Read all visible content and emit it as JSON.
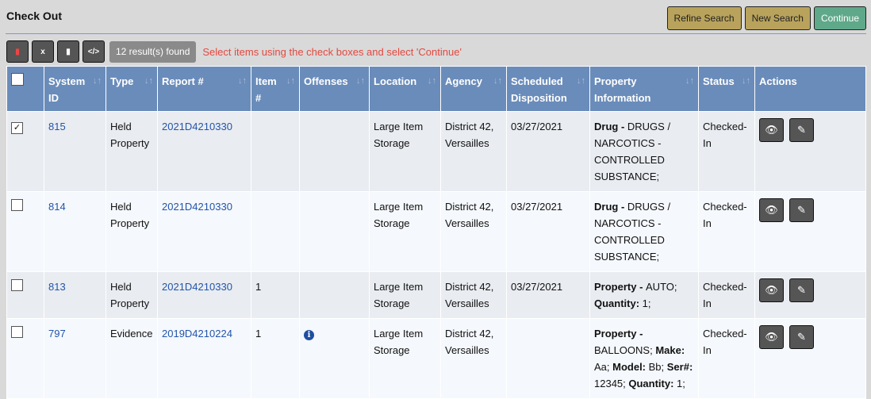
{
  "page": {
    "title": "Check Out"
  },
  "buttons": {
    "refine": "Refine Search",
    "new": "New Search",
    "continue": "Continue"
  },
  "toolbar": {
    "icons": [
      "pdf-icon",
      "excel-icon",
      "file-icon",
      "code-icon"
    ],
    "count": "12 result(s) found",
    "message": "Select items using the check boxes and select 'Continue'"
  },
  "colors": {
    "header": "#6a8cba",
    "refine": "#b9a35c",
    "continue": "#5fa98a",
    "message": "#e5483f"
  },
  "columns": [
    "System ID",
    "Type",
    "Report #",
    "Item #",
    "Offenses",
    "Location",
    "Agency",
    "Scheduled Disposition",
    "Property Information",
    "Status",
    "Actions"
  ],
  "rows": [
    {
      "checked": true,
      "id": "815",
      "type": "Held Property",
      "report": "2021D4210330",
      "item": "",
      "offense_icon": false,
      "location": "Large Item Storage",
      "agency": "District 42, Versailles",
      "disposition": "03/27/2021",
      "property": [
        [
          "Drug - ",
          "DRUGS / NARCOTICS - CONTROLLED SUBSTANCE;"
        ]
      ],
      "status": "Checked-In"
    },
    {
      "checked": false,
      "id": "814",
      "type": "Held Property",
      "report": "2021D4210330",
      "item": "",
      "offense_icon": false,
      "location": "Large Item Storage",
      "agency": "District 42, Versailles",
      "disposition": "03/27/2021",
      "property": [
        [
          "Drug - ",
          "DRUGS / NARCOTICS - CONTROLLED SUBSTANCE;"
        ]
      ],
      "status": "Checked-In"
    },
    {
      "checked": false,
      "id": "813",
      "type": "Held Property",
      "report": "2021D4210330",
      "item": "1",
      "offense_icon": false,
      "location": "Large Item Storage",
      "agency": "District 42, Versailles",
      "disposition": "03/27/2021",
      "property": [
        [
          "Property - ",
          "AUTO; "
        ],
        [
          "Quantity: ",
          "1;"
        ]
      ],
      "status": "Checked-In"
    },
    {
      "checked": false,
      "id": "797",
      "type": "Evidence",
      "report": "2019D4210224",
      "item": "1",
      "offense_icon": true,
      "location": "Large Item Storage",
      "agency": "District 42, Versailles",
      "disposition": "",
      "property": [
        [
          "Property - ",
          "BALLOONS; "
        ],
        [
          "Make: ",
          "Aa; "
        ],
        [
          "Model: ",
          "Bb; "
        ],
        [
          "Ser#: ",
          "12345; "
        ],
        [
          "Quantity: ",
          "1;"
        ]
      ],
      "status": "Checked-In"
    }
  ]
}
